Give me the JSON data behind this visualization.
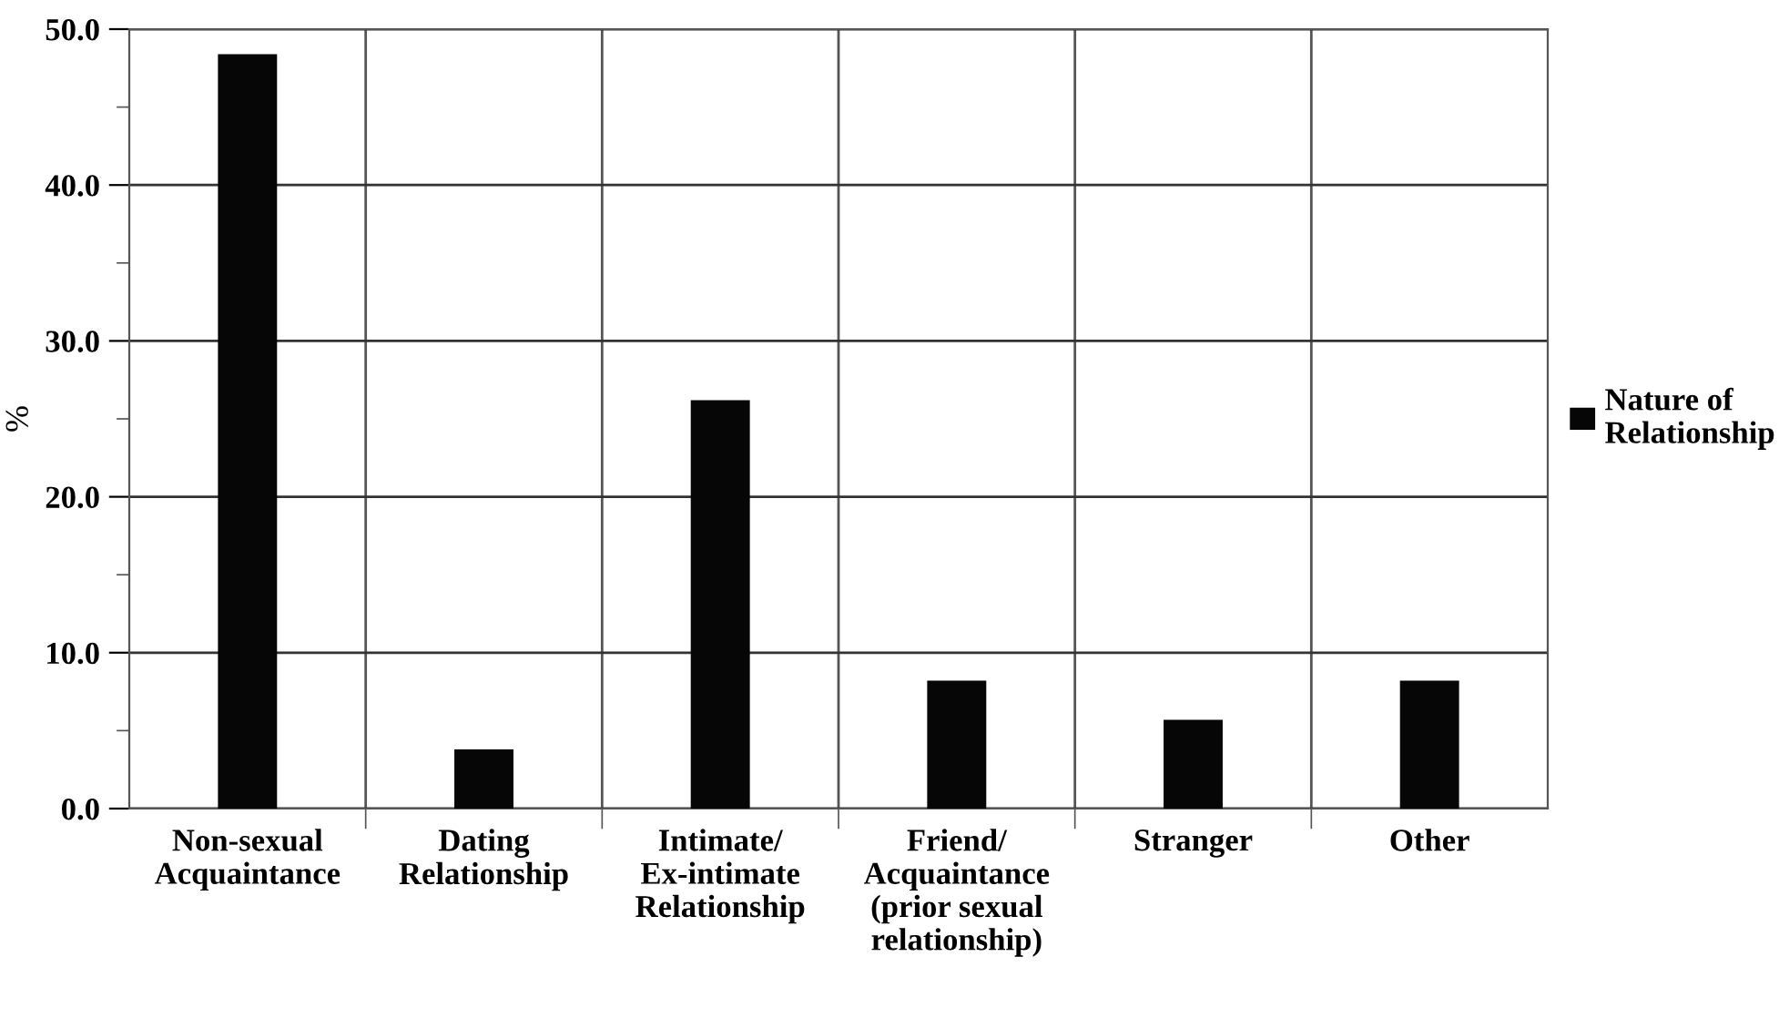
{
  "chart_data": {
    "type": "bar",
    "ylabel": "%",
    "categories": [
      "Non-sexual\nAcquaintance",
      "Dating\nRelationship",
      "Intimate/\nEx-intimate\nRelationship",
      "Friend/\nAcquaintance\n(prior sexual\nrelationship)",
      "Stranger",
      "Other"
    ],
    "series": [
      {
        "name": "Nature of\nRelationship",
        "color": "#060606",
        "values": [
          48.4,
          3.8,
          26.2,
          8.2,
          5.7,
          8.2
        ]
      }
    ],
    "ylim": [
      0,
      50
    ],
    "yticks": [
      {
        "value": 0,
        "label": "0.0"
      },
      {
        "value": 5,
        "label": null
      },
      {
        "value": 10,
        "label": "10.0"
      },
      {
        "value": 15,
        "label": null
      },
      {
        "value": 20,
        "label": "20.0"
      },
      {
        "value": 25,
        "label": null
      },
      {
        "value": 30,
        "label": "30.0"
      },
      {
        "value": 35,
        "label": null
      },
      {
        "value": 40,
        "label": "40.0"
      },
      {
        "value": 45,
        "label": null
      },
      {
        "value": 50,
        "label": "50.0"
      }
    ],
    "grid": true,
    "legend": "right"
  }
}
